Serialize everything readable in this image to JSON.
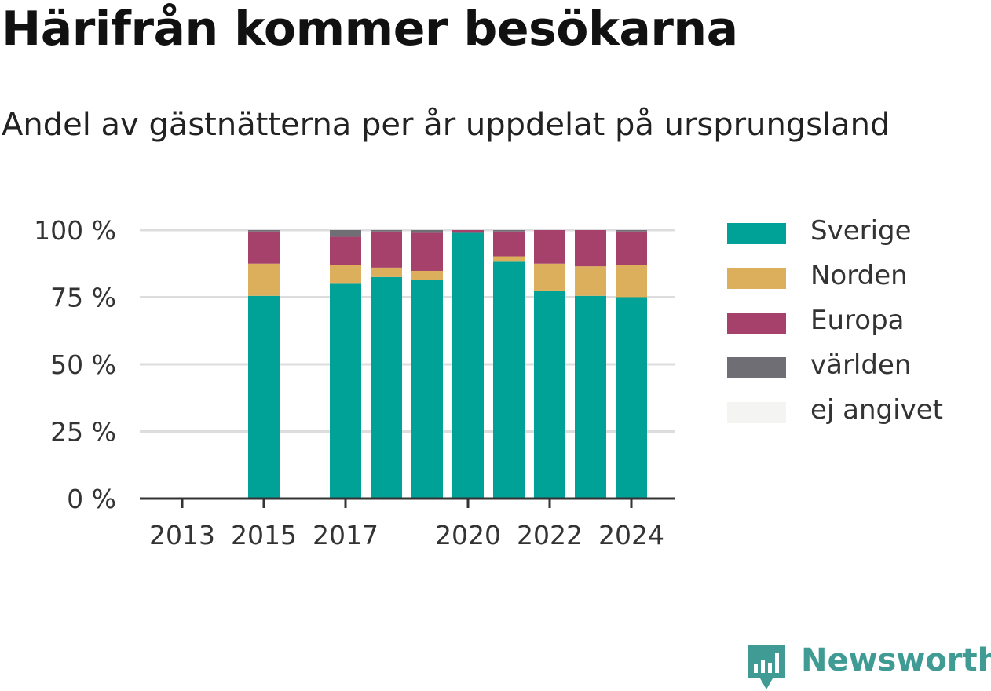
{
  "header": {
    "title": "Härifrån kommer besökarna",
    "subtitle": "Andel av gästnätterna per år uppdelat på ursprungsland"
  },
  "chart_data": {
    "type": "bar",
    "stacked": true,
    "categories": [
      "2013",
      "2014",
      "2015",
      "2016",
      "2017",
      "2018",
      "2019",
      "2020",
      "2021",
      "2022",
      "2023",
      "2024"
    ],
    "x_tick_labels": [
      "2013",
      "2015",
      "2017",
      "2020",
      "2022",
      "2024"
    ],
    "y_tick_labels": [
      "0 %",
      "25 %",
      "50 %",
      "75 %",
      "100 %"
    ],
    "ylim": [
      0,
      100
    ],
    "y_ticks": [
      0,
      25,
      50,
      75,
      100
    ],
    "grid": true,
    "legend_position": "right",
    "series": [
      {
        "name": "Sverige",
        "color": "#00a298",
        "values": [
          null,
          null,
          75.5,
          null,
          80,
          82.5,
          81.3,
          99,
          88.2,
          77.5,
          75.5,
          75
        ]
      },
      {
        "name": "Norden",
        "color": "#dcaf5c",
        "values": [
          null,
          null,
          12,
          null,
          7,
          3.5,
          3.5,
          0,
          2,
          10,
          11,
          12
        ]
      },
      {
        "name": "Europa",
        "color": "#a5416a",
        "values": [
          null,
          null,
          12,
          null,
          10.5,
          13.5,
          14.2,
          1,
          9.3,
          12.5,
          13.5,
          12.5
        ]
      },
      {
        "name": "världen",
        "color": "#6f6e74",
        "values": [
          null,
          null,
          0.5,
          null,
          2.5,
          0.5,
          1,
          0,
          0.5,
          0,
          0,
          0.5
        ]
      },
      {
        "name": "ej angivet",
        "color": "#f4f4f2",
        "values": [
          null,
          null,
          0,
          null,
          0,
          0,
          0,
          0,
          0,
          0,
          0,
          0
        ]
      }
    ]
  },
  "brand": {
    "name": "Newsworthy",
    "icon": "newsworthy-logo-icon",
    "color": "#3f9b93"
  }
}
